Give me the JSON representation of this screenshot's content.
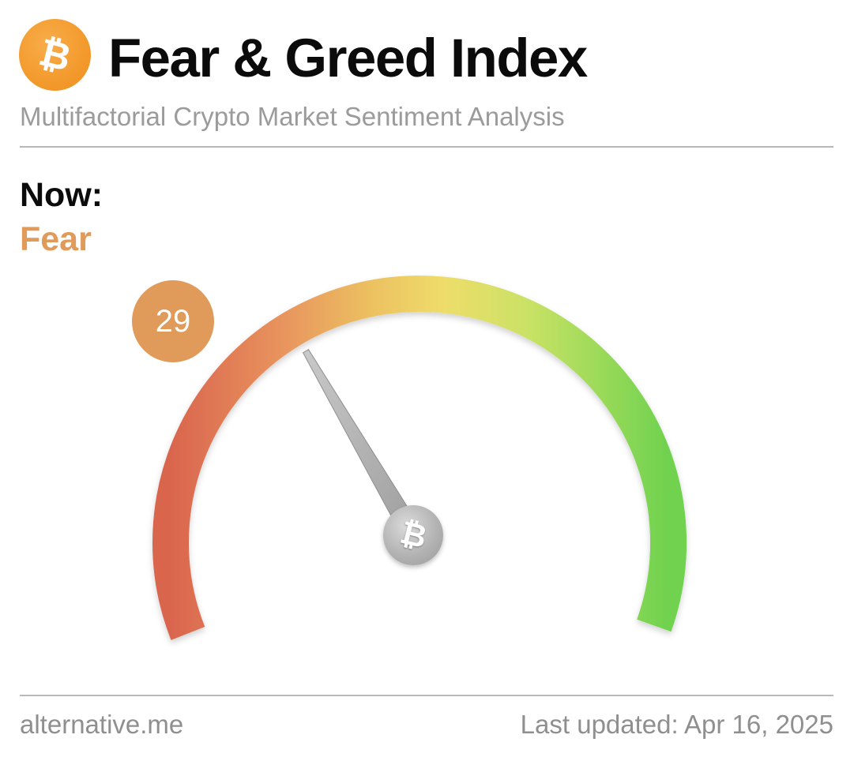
{
  "header": {
    "logo_icon": "bitcoin-icon",
    "logo_glyph": "₿",
    "title": "Fear & Greed Index",
    "subtitle": "Multifactorial Crypto Market Sentiment Analysis"
  },
  "current": {
    "label": "Now:",
    "classification": "Fear",
    "classification_color": "#e09a5a",
    "value": "29"
  },
  "gauge": {
    "min": 0,
    "max": 100,
    "value": 29,
    "colors": {
      "fear": "#d9654e",
      "neutral": "#eedb6a",
      "greed": "#74d351",
      "badge": "#e09a5a",
      "hub": "#b3b3b3"
    },
    "hub_icon": "bitcoin-icon",
    "hub_glyph": "₿"
  },
  "footer": {
    "source": "alternative.me",
    "last_updated": "Last updated: Apr 16, 2025"
  }
}
